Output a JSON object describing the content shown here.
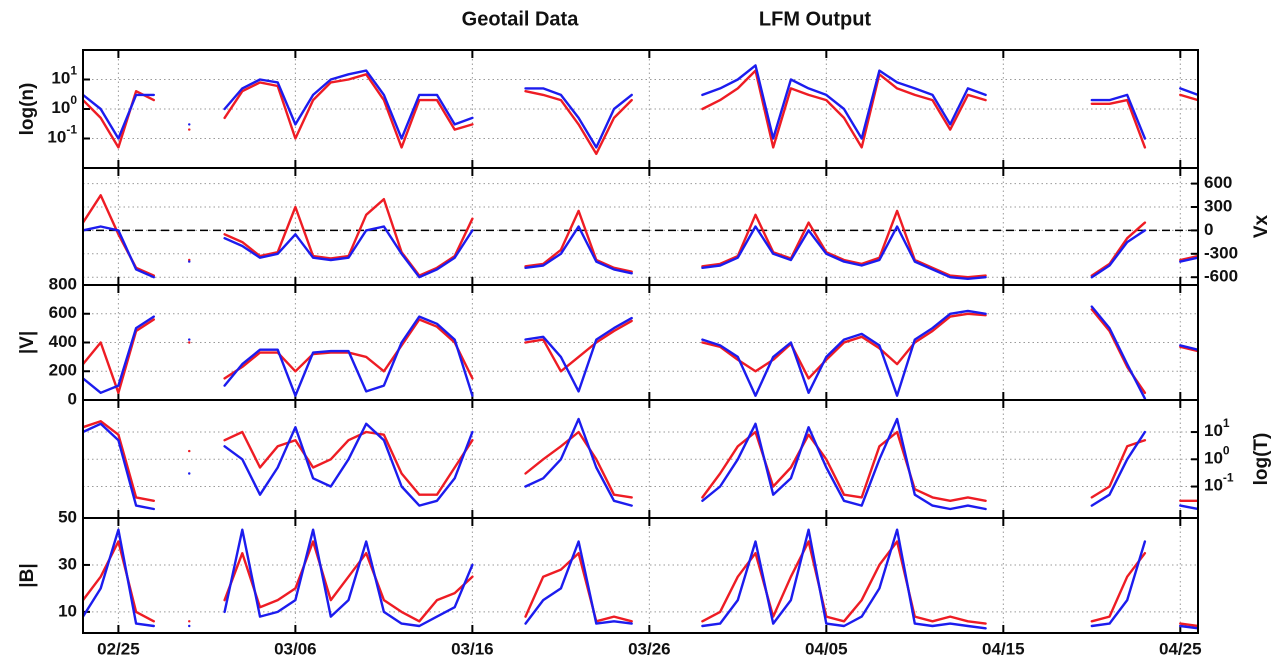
{
  "x_axis": {
    "xlim": [
      "02/23",
      "04/26"
    ],
    "xticks": [
      "02/25",
      "03/06",
      "03/16",
      "03/26",
      "04/05",
      "04/15",
      "04/25"
    ]
  },
  "chart_data": [
    {
      "type": "line",
      "ylabel": "log(n)",
      "y_side": "left",
      "log_scale": true,
      "grid": true,
      "ylim": [
        0.01,
        100
      ],
      "yticks": [
        {
          "value": 0.1,
          "label": "10",
          "exponent": "-1"
        },
        {
          "value": 1,
          "label": "10",
          "exponent": "0"
        },
        {
          "value": 10,
          "label": "10",
          "exponent": "1"
        }
      ],
      "x": [
        "02/23",
        "02/24",
        "02/25",
        "02/26",
        "02/27",
        "02/28",
        "02/29",
        "03/01",
        "03/02",
        "03/03",
        "03/04",
        "03/05",
        "03/06",
        "03/07",
        "03/08",
        "03/09",
        "03/10",
        "03/11",
        "03/12",
        "03/13",
        "03/14",
        "03/15",
        "03/16",
        "03/17",
        "03/18",
        "03/19",
        "03/20",
        "03/21",
        "03/22",
        "03/23",
        "03/24",
        "03/25",
        "03/26",
        "03/27",
        "03/28",
        "03/29",
        "03/30",
        "03/31",
        "04/01",
        "04/02",
        "04/03",
        "04/04",
        "04/05",
        "04/06",
        "04/07",
        "04/08",
        "04/09",
        "04/10",
        "04/11",
        "04/12",
        "04/13",
        "04/14",
        "04/15",
        "04/16",
        "04/17",
        "04/18",
        "04/19",
        "04/20",
        "04/21",
        "04/22",
        "04/23",
        "04/24",
        "04/25",
        "04/26"
      ],
      "series": [
        {
          "name": "Geotail Data",
          "color": "#ee1c24",
          "values": [
            2,
            0.5,
            0.05,
            4,
            2,
            null,
            0.2,
            null,
            0.5,
            4,
            8,
            6,
            0.1,
            2,
            8,
            10,
            15,
            2,
            0.05,
            2,
            2,
            0.2,
            0.3,
            null,
            null,
            4,
            3,
            2,
            0.3,
            0.03,
            0.5,
            2,
            null,
            null,
            null,
            1,
            2,
            5,
            20,
            0.05,
            5,
            3,
            2,
            0.5,
            0.05,
            15,
            5,
            3,
            2,
            0.2,
            3,
            2,
            null,
            null,
            null,
            null,
            null,
            1.5,
            1.5,
            2,
            0.05,
            null,
            3,
            2
          ]
        },
        {
          "name": "LFM Output",
          "color": "#1c1cee",
          "values": [
            3,
            1,
            0.1,
            3,
            3,
            null,
            0.3,
            null,
            1,
            5,
            10,
            8,
            0.3,
            3,
            10,
            15,
            20,
            3,
            0.1,
            3,
            3,
            0.3,
            0.5,
            null,
            null,
            5,
            5,
            3,
            0.5,
            0.05,
            1,
            3,
            null,
            null,
            null,
            3,
            5,
            10,
            30,
            0.1,
            10,
            5,
            3,
            1,
            0.1,
            20,
            8,
            5,
            3,
            0.3,
            5,
            3,
            null,
            null,
            null,
            null,
            null,
            2,
            2,
            3,
            0.1,
            null,
            5,
            3
          ]
        }
      ]
    },
    {
      "type": "line",
      "ylabel": "Vx",
      "y_side": "right",
      "log_scale": false,
      "grid": true,
      "reference_line": 0,
      "ylim": [
        -700,
        800
      ],
      "yticks": [
        -600,
        -300,
        0,
        300,
        600
      ],
      "x": [
        "02/23",
        "02/24",
        "02/25",
        "02/26",
        "02/27",
        "02/28",
        "02/29",
        "03/01",
        "03/02",
        "03/03",
        "03/04",
        "03/05",
        "03/06",
        "03/07",
        "03/08",
        "03/09",
        "03/10",
        "03/11",
        "03/12",
        "03/13",
        "03/14",
        "03/15",
        "03/16",
        "03/17",
        "03/18",
        "03/19",
        "03/20",
        "03/21",
        "03/22",
        "03/23",
        "03/24",
        "03/25",
        "03/26",
        "03/27",
        "03/28",
        "03/29",
        "03/30",
        "03/31",
        "04/01",
        "04/02",
        "04/03",
        "04/04",
        "04/05",
        "04/06",
        "04/07",
        "04/08",
        "04/09",
        "04/10",
        "04/11",
        "04/12",
        "04/13",
        "04/14",
        "04/15",
        "04/16",
        "04/17",
        "04/18",
        "04/19",
        "04/20",
        "04/21",
        "04/22",
        "04/23",
        "04/24",
        "04/25",
        "04/26"
      ],
      "series": [
        {
          "color": "#ee1c24",
          "values": [
            100,
            450,
            -50,
            -480,
            -580,
            null,
            -380,
            null,
            -50,
            -150,
            -330,
            -280,
            300,
            -330,
            -360,
            -330,
            200,
            400,
            -280,
            -580,
            -480,
            -330,
            150,
            null,
            null,
            -460,
            -430,
            -250,
            250,
            -380,
            -480,
            -530,
            null,
            null,
            null,
            -460,
            -430,
            -330,
            200,
            -280,
            -360,
            100,
            -280,
            -380,
            -430,
            -350,
            250,
            -380,
            -480,
            -580,
            -600,
            -580,
            null,
            null,
            null,
            null,
            null,
            -580,
            -430,
            -100,
            100,
            null,
            -380,
            -330
          ]
        },
        {
          "color": "#1c1cee",
          "values": [
            0,
            50,
            0,
            -500,
            -600,
            null,
            -400,
            null,
            -100,
            -200,
            -350,
            -300,
            -50,
            -350,
            -380,
            -350,
            0,
            50,
            -300,
            -600,
            -500,
            -350,
            0,
            null,
            null,
            -480,
            -450,
            -300,
            50,
            -400,
            -500,
            -550,
            null,
            null,
            null,
            -480,
            -450,
            -350,
            50,
            -300,
            -380,
            0,
            -300,
            -400,
            -450,
            -380,
            50,
            -400,
            -500,
            -600,
            -620,
            -600,
            null,
            null,
            null,
            null,
            null,
            -600,
            -450,
            -150,
            0,
            null,
            -400,
            -350
          ]
        }
      ]
    },
    {
      "type": "line",
      "ylabel": "|V|",
      "y_side": "left",
      "log_scale": false,
      "grid": true,
      "ylim": [
        0,
        800
      ],
      "yticks": [
        0,
        200,
        400,
        600,
        800
      ],
      "x": [
        "02/23",
        "02/24",
        "02/25",
        "02/26",
        "02/27",
        "02/28",
        "02/29",
        "03/01",
        "03/02",
        "03/03",
        "03/04",
        "03/05",
        "03/06",
        "03/07",
        "03/08",
        "03/09",
        "03/10",
        "03/11",
        "03/12",
        "03/13",
        "03/14",
        "03/15",
        "03/16",
        "03/17",
        "03/18",
        "03/19",
        "03/20",
        "03/21",
        "03/22",
        "03/23",
        "03/24",
        "03/25",
        "03/26",
        "03/27",
        "03/28",
        "03/29",
        "03/30",
        "03/31",
        "04/01",
        "04/02",
        "04/03",
        "04/04",
        "04/05",
        "04/06",
        "04/07",
        "04/08",
        "04/09",
        "04/10",
        "04/11",
        "04/12",
        "04/13",
        "04/14",
        "04/15",
        "04/16",
        "04/17",
        "04/18",
        "04/19",
        "04/20",
        "04/21",
        "04/22",
        "04/23",
        "04/24",
        "04/25",
        "04/26"
      ],
      "series": [
        {
          "color": "#ee1c24",
          "values": [
            250,
            400,
            50,
            480,
            560,
            null,
            400,
            null,
            150,
            230,
            330,
            330,
            200,
            320,
            330,
            330,
            300,
            200,
            380,
            560,
            510,
            400,
            150,
            null,
            null,
            400,
            420,
            200,
            300,
            400,
            480,
            550,
            null,
            null,
            null,
            400,
            370,
            280,
            200,
            280,
            390,
            150,
            280,
            400,
            440,
            360,
            250,
            400,
            480,
            580,
            600,
            590,
            null,
            null,
            null,
            null,
            null,
            630,
            480,
            230,
            50,
            null,
            370,
            340
          ]
        },
        {
          "color": "#1c1cee",
          "values": [
            150,
            50,
            100,
            500,
            580,
            null,
            420,
            null,
            100,
            250,
            350,
            350,
            30,
            330,
            340,
            340,
            60,
            100,
            400,
            580,
            530,
            420,
            30,
            null,
            null,
            420,
            440,
            300,
            60,
            420,
            500,
            570,
            null,
            null,
            null,
            420,
            380,
            300,
            30,
            300,
            400,
            50,
            300,
            420,
            460,
            380,
            30,
            420,
            500,
            600,
            620,
            600,
            null,
            null,
            null,
            null,
            null,
            650,
            500,
            250,
            10,
            null,
            380,
            350
          ]
        }
      ]
    },
    {
      "type": "line",
      "ylabel": "log(T)",
      "y_side": "right",
      "log_scale": true,
      "grid": true,
      "ylim": [
        0.007,
        150
      ],
      "yticks": [
        {
          "value": 0.1,
          "label": "10",
          "exponent": "-1"
        },
        {
          "value": 1,
          "label": "10",
          "exponent": "0"
        },
        {
          "value": 10,
          "label": "10",
          "exponent": "1"
        }
      ],
      "x": [
        "02/23",
        "02/24",
        "02/25",
        "02/26",
        "02/27",
        "02/28",
        "02/29",
        "03/01",
        "03/02",
        "03/03",
        "03/04",
        "03/05",
        "03/06",
        "03/07",
        "03/08",
        "03/09",
        "03/10",
        "03/11",
        "03/12",
        "03/13",
        "03/14",
        "03/15",
        "03/16",
        "03/17",
        "03/18",
        "03/19",
        "03/20",
        "03/21",
        "03/22",
        "03/23",
        "03/24",
        "03/25",
        "03/26",
        "03/27",
        "03/28",
        "03/29",
        "03/30",
        "03/31",
        "04/01",
        "04/02",
        "04/03",
        "04/04",
        "04/05",
        "04/06",
        "04/07",
        "04/08",
        "04/09",
        "04/10",
        "04/11",
        "04/12",
        "04/13",
        "04/14",
        "04/15",
        "04/16",
        "04/17",
        "04/18",
        "04/19",
        "04/20",
        "04/21",
        "04/22",
        "04/23",
        "04/24",
        "04/25",
        "04/26"
      ],
      "series": [
        {
          "color": "#ee1c24",
          "values": [
            15,
            25,
            8,
            0.04,
            0.03,
            null,
            2,
            null,
            5,
            10,
            0.5,
            3,
            5,
            0.5,
            1,
            5,
            10,
            8,
            0.3,
            0.05,
            0.05,
            0.5,
            5,
            null,
            null,
            0.3,
            1,
            3,
            10,
            1,
            0.05,
            0.04,
            null,
            null,
            null,
            0.04,
            0.3,
            3,
            10,
            0.1,
            0.5,
            8,
            1,
            0.05,
            0.04,
            3,
            10,
            0.08,
            0.04,
            0.03,
            0.04,
            0.03,
            null,
            null,
            null,
            null,
            null,
            0.04,
            0.1,
            3,
            5,
            null,
            0.03,
            0.03
          ]
        },
        {
          "color": "#1c1cee",
          "values": [
            10,
            20,
            5,
            0.02,
            0.015,
            null,
            0.3,
            null,
            3,
            1,
            0.05,
            0.5,
            15,
            0.2,
            0.1,
            1,
            20,
            5,
            0.1,
            0.02,
            0.03,
            0.2,
            10,
            null,
            null,
            0.1,
            0.2,
            1,
            30,
            0.5,
            0.03,
            0.02,
            null,
            null,
            null,
            0.03,
            0.1,
            1,
            20,
            0.05,
            0.2,
            15,
            0.5,
            0.03,
            0.02,
            1,
            30,
            0.05,
            0.02,
            0.015,
            0.02,
            0.015,
            null,
            null,
            null,
            null,
            null,
            0.02,
            0.05,
            1,
            10,
            null,
            0.02,
            0.015
          ]
        }
      ]
    },
    {
      "type": "line",
      "ylabel": "|B|",
      "y_side": "left",
      "log_scale": false,
      "grid": true,
      "ylim": [
        1,
        50
      ],
      "yticks": [
        10,
        30,
        50
      ],
      "x": [
        "02/23",
        "02/24",
        "02/25",
        "02/26",
        "02/27",
        "02/28",
        "02/29",
        "03/01",
        "03/02",
        "03/03",
        "03/04",
        "03/05",
        "03/06",
        "03/07",
        "03/08",
        "03/09",
        "03/10",
        "03/11",
        "03/12",
        "03/13",
        "03/14",
        "03/15",
        "03/16",
        "03/17",
        "03/18",
        "03/19",
        "03/20",
        "03/21",
        "03/22",
        "03/23",
        "03/24",
        "03/25",
        "03/26",
        "03/27",
        "03/28",
        "03/29",
        "03/30",
        "03/31",
        "04/01",
        "04/02",
        "04/03",
        "04/04",
        "04/05",
        "04/06",
        "04/07",
        "04/08",
        "04/09",
        "04/10",
        "04/11",
        "04/12",
        "04/13",
        "04/14",
        "04/15",
        "04/16",
        "04/17",
        "04/18",
        "04/19",
        "04/20",
        "04/21",
        "04/22",
        "04/23",
        "04/24",
        "04/25",
        "04/26"
      ],
      "series": [
        {
          "color": "#ee1c24",
          "values": [
            15,
            25,
            40,
            10,
            6,
            null,
            6,
            null,
            15,
            35,
            12,
            15,
            20,
            40,
            15,
            25,
            35,
            15,
            10,
            6,
            15,
            18,
            25,
            null,
            null,
            8,
            25,
            28,
            35,
            6,
            8,
            6,
            null,
            null,
            null,
            6,
            10,
            25,
            35,
            8,
            25,
            40,
            8,
            6,
            15,
            30,
            40,
            8,
            6,
            8,
            6,
            5,
            null,
            null,
            null,
            null,
            null,
            6,
            8,
            25,
            35,
            null,
            5,
            4
          ]
        },
        {
          "color": "#1c1cee",
          "values": [
            8,
            20,
            45,
            5,
            4,
            null,
            4,
            null,
            10,
            45,
            8,
            10,
            15,
            45,
            8,
            15,
            40,
            10,
            5,
            4,
            8,
            12,
            30,
            null,
            null,
            5,
            15,
            20,
            40,
            5,
            6,
            5,
            null,
            null,
            null,
            4,
            5,
            15,
            40,
            5,
            15,
            45,
            5,
            4,
            8,
            20,
            45,
            5,
            4,
            5,
            4,
            3,
            null,
            null,
            null,
            null,
            null,
            4,
            5,
            15,
            40,
            null,
            4,
            3
          ]
        }
      ]
    }
  ]
}
